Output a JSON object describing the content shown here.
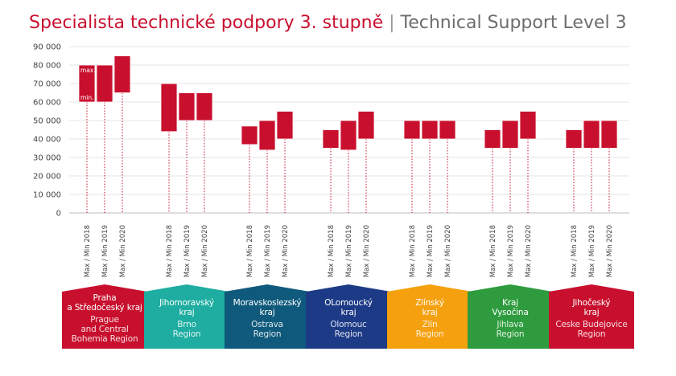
{
  "title": {
    "czech": "Specialista technické podpory 3. stupně",
    "separator": "|",
    "english": "Technical Support Level 3"
  },
  "chart_data": {
    "type": "floating-bar",
    "ylim": [
      0,
      90000
    ],
    "yticks": [
      0,
      10000,
      20000,
      30000,
      40000,
      50000,
      60000,
      70000,
      80000,
      90000
    ],
    "ytick_labels": [
      "0",
      "10 000",
      "20 000",
      "30 000",
      "40 000",
      "50 000",
      "60 000",
      "70 000",
      "80 000",
      "90 000"
    ],
    "grid": true,
    "bar_color": "#c8102e",
    "bar_labels": {
      "max": "max.",
      "min": "min."
    },
    "xlabels": [
      "Max / Min 2018",
      "Max / Min 2019",
      "Max / Min 2020"
    ],
    "groups": [
      {
        "name": "Praha\na Středočeský kraj",
        "name_en": "Prague\nand Central\nBohemia Region",
        "color": "#c8102e",
        "bars": [
          {
            "year": 2018,
            "min": 60000,
            "max": 80000
          },
          {
            "year": 2019,
            "min": 60000,
            "max": 80000
          },
          {
            "year": 2020,
            "min": 65000,
            "max": 85000
          }
        ]
      },
      {
        "name": "Jihomoravský\nkraj",
        "name_en": "Brno\nRegion",
        "color": "#1eada0",
        "bars": [
          {
            "year": 2018,
            "min": 44000,
            "max": 70000
          },
          {
            "year": 2019,
            "min": 50000,
            "max": 65000
          },
          {
            "year": 2020,
            "min": 50000,
            "max": 65000
          }
        ]
      },
      {
        "name": "Moravskoslezský\nkraj",
        "name_en": "Ostrava\nRegion",
        "color": "#0f5a7c",
        "bars": [
          {
            "year": 2018,
            "min": 37000,
            "max": 47000
          },
          {
            "year": 2019,
            "min": 34000,
            "max": 50000
          },
          {
            "year": 2020,
            "min": 40000,
            "max": 55000
          }
        ]
      },
      {
        "name": "OLomoucký\nkraj",
        "name_en": "Olomouc\nRegion",
        "color": "#1d3a86",
        "bars": [
          {
            "year": 2018,
            "min": 35000,
            "max": 45000
          },
          {
            "year": 2019,
            "min": 34000,
            "max": 50000
          },
          {
            "year": 2020,
            "min": 40000,
            "max": 55000
          }
        ]
      },
      {
        "name": "Zlínský\nkraj",
        "name_en": "Zlín\nRegion",
        "color": "#f5a00f",
        "bars": [
          {
            "year": 2018,
            "min": 40000,
            "max": 50000
          },
          {
            "year": 2019,
            "min": 40000,
            "max": 50000
          },
          {
            "year": 2020,
            "min": 40000,
            "max": 50000
          }
        ]
      },
      {
        "name": "Kraj\nVysočina",
        "name_en": "Jihlava\nRegion",
        "color": "#2e9c3e",
        "bars": [
          {
            "year": 2018,
            "min": 35000,
            "max": 45000
          },
          {
            "year": 2019,
            "min": 35000,
            "max": 50000
          },
          {
            "year": 2020,
            "min": 40000,
            "max": 55000
          }
        ]
      },
      {
        "name": "Jihočeský\nkraj",
        "name_en": "Ceske Budejovice\nRegion",
        "color": "#c8102e",
        "bars": [
          {
            "year": 2018,
            "min": 35000,
            "max": 45000
          },
          {
            "year": 2019,
            "min": 35000,
            "max": 50000
          },
          {
            "year": 2020,
            "min": 35000,
            "max": 50000
          }
        ]
      }
    ]
  }
}
